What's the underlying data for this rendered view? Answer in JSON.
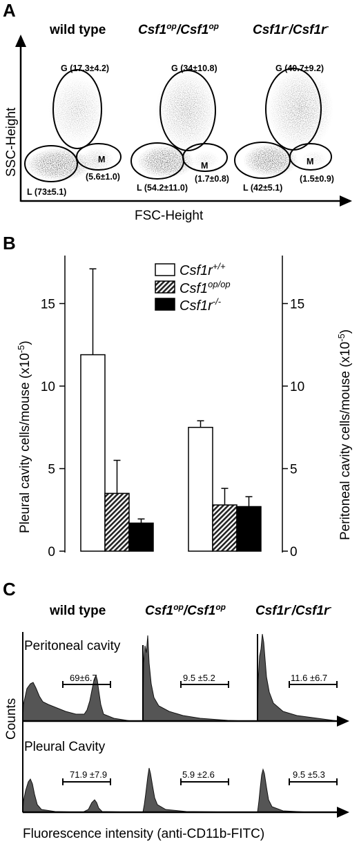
{
  "panelA": {
    "letter": "A",
    "headers": [
      {
        "text": "wild type",
        "italic": false
      },
      {
        "base1": "Csf1",
        "sup1": "op",
        "sep": "/",
        "base2": "Csf1",
        "sup2": "op",
        "italic": true
      },
      {
        "base1": "Csf1r",
        "sup1": "-",
        "sep": "/",
        "base2": "Csf1r",
        "sup2": "-",
        "italic": true
      }
    ],
    "ylabel": "SSC-Height",
    "xlabel": "FSC-Height",
    "plots": [
      {
        "G": "G (17.3±4.2)",
        "M_label": "M",
        "M_val": "(5.6±1.0)",
        "L": "L (73±5.1)"
      },
      {
        "G": "G (34±10.8)",
        "M_label": "M",
        "M_val": "(1.7±0.8)",
        "L": "L (54.2±11.0)"
      },
      {
        "G": "G (40.7±9.2)",
        "M_label": "M",
        "M_val": "(1.5±0.9)",
        "L": "L (42±5.1)"
      }
    ]
  },
  "panelB": {
    "letter": "B",
    "ylabel_left": "Pleural cavity cells/mouse (x10",
    "ylabel_left_sup": "-5",
    "ylabel_right": "Peritoneal cavity cells/mouse (x10",
    "ylabel_right_sup": "-5",
    "ticks_left": [
      "0",
      "5",
      "10",
      "15"
    ],
    "ticks_right": [
      "0",
      "5",
      "10",
      "15"
    ],
    "legend": [
      {
        "base": "Csf1r",
        "sup": "+/+",
        "pattern": "white"
      },
      {
        "base": "Csf1",
        "sup": "op/op",
        "pattern": "hatch"
      },
      {
        "base": "Csf1r",
        "sup": "-/-",
        "pattern": "black"
      }
    ]
  },
  "chart_data": {
    "type": "bar",
    "categories": [
      "Pleural cavity",
      "Peritoneal cavity"
    ],
    "series": [
      {
        "name": "Csf1r+/+",
        "values": [
          11.9,
          7.5
        ],
        "errors": [
          5.2,
          0.4
        ]
      },
      {
        "name": "Csf1op/op",
        "values": [
          3.5,
          2.8
        ],
        "errors": [
          2.0,
          1.0
        ]
      },
      {
        "name": "Csf1r-/-",
        "values": [
          1.7,
          2.7
        ],
        "errors": [
          0.25,
          0.6
        ]
      }
    ],
    "ylim": [
      0,
      17.5
    ],
    "colors": {
      "white": "#ffffff",
      "hatch": "#555555",
      "black": "#000000"
    }
  },
  "panelC": {
    "letter": "C",
    "headers": [
      {
        "text": "wild type"
      },
      {
        "base1": "Csf1",
        "sup1": "op",
        "sep": "/",
        "base2": "Csf1",
        "sup2": "op"
      },
      {
        "base1": "Csf1r",
        "sup1": "-",
        "sep": "/",
        "base2": "Csf1r",
        "sup2": "-"
      }
    ],
    "row1_label": "Peritoneal cavity",
    "row2_label": "Pleural Cavity",
    "ylabel": "Counts",
    "xlabel": "Fluorescence intensity (anti-CD11b-FITC)",
    "row1_values": [
      "69±6.7",
      "9.5 ±5.2",
      "11.6 ±6.7"
    ],
    "row2_values": [
      "71.9 ±7.9",
      "5.9 ±2.6",
      "9.5 ±5.3"
    ]
  }
}
